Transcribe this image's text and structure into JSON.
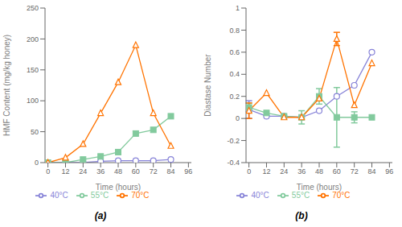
{
  "chart_data": [
    {
      "type": "line",
      "title": "(a)",
      "xlabel": "Time (hours)",
      "ylabel": "HMF Content (mg/kg honey)",
      "x": [
        0,
        12,
        24,
        36,
        48,
        60,
        72,
        84
      ],
      "xlim": [
        -2,
        98
      ],
      "xticks": [
        0,
        12,
        24,
        36,
        48,
        60,
        72,
        84,
        96
      ],
      "ylim": [
        0,
        250
      ],
      "yticks": [
        0,
        50,
        100,
        150,
        200,
        250
      ],
      "legend": "bottom",
      "series": [
        {
          "name": "40°C",
          "color": "#8884d8",
          "marker": "circle",
          "values": [
            0,
            0,
            0,
            2,
            3,
            3,
            3,
            5
          ]
        },
        {
          "name": "55°C",
          "color": "#82ca9d",
          "marker": "square",
          "values": [
            0,
            0,
            5,
            10,
            17,
            47,
            53,
            75
          ]
        },
        {
          "name": "70°C",
          "color": "#ff7300",
          "marker": "triangle",
          "values": [
            0,
            8,
            30,
            80,
            130,
            190,
            80,
            27
          ]
        }
      ]
    },
    {
      "type": "line",
      "title": "(b)",
      "xlabel": "Time (hours)",
      "ylabel": "Diastase Number",
      "x": [
        0,
        12,
        24,
        36,
        48,
        60,
        72,
        84
      ],
      "xlim": [
        -2,
        98
      ],
      "xticks": [
        0,
        12,
        24,
        36,
        48,
        60,
        72,
        84,
        96
      ],
      "ylim": [
        -0.4,
        1.0
      ],
      "yticks": [
        -0.4,
        -0.2,
        0,
        0.2,
        0.4,
        0.6,
        0.8,
        1.0
      ],
      "legend": "bottom",
      "series": [
        {
          "name": "40°C",
          "color": "#8884d8",
          "marker": "circle",
          "values": [
            0.08,
            0.02,
            0.02,
            0.01,
            0.07,
            0.2,
            0.3,
            0.6
          ],
          "errors": [
            0.08,
            0.0,
            0.0,
            0.0,
            0.0,
            0.0,
            0.0,
            0.0
          ]
        },
        {
          "name": "55°C",
          "color": "#82ca9d",
          "marker": "square",
          "values": [
            0.1,
            0.05,
            0.02,
            0.01,
            0.2,
            0.01,
            0.01,
            0.01
          ],
          "errors": [
            0.04,
            0.0,
            0.0,
            0.06,
            0.07,
            0.27,
            0.05,
            0.0
          ]
        },
        {
          "name": "70°C",
          "color": "#ff7300",
          "marker": "triangle",
          "values": [
            0.07,
            0.23,
            0.01,
            0.01,
            0.18,
            0.72,
            0.12,
            0.5
          ],
          "errors": [
            0.07,
            0.0,
            0.0,
            0.0,
            0.0,
            0.06,
            0.0,
            0.0
          ]
        }
      ]
    }
  ]
}
